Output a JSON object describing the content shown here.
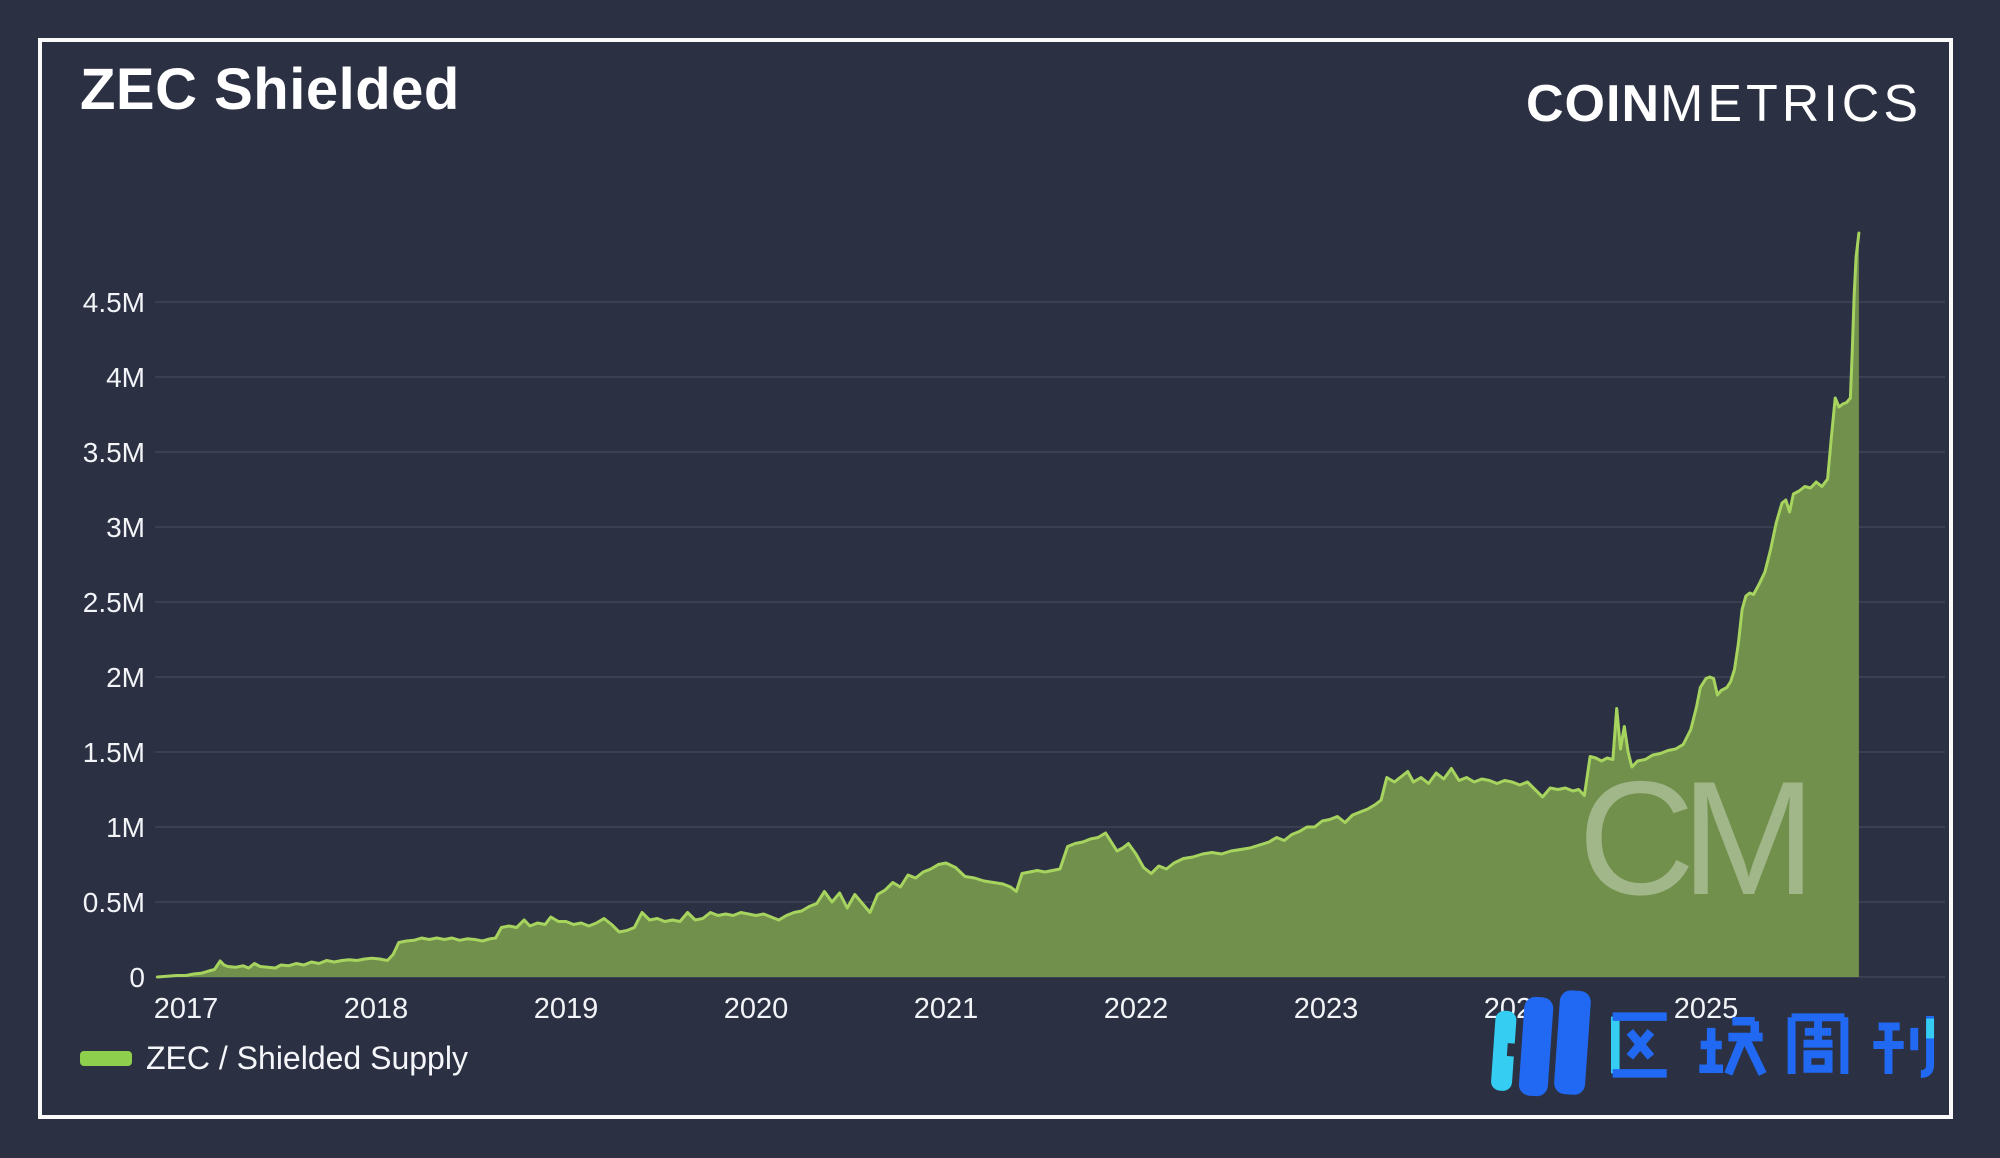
{
  "page": {
    "bg_color": "#2b3043",
    "frame_color": "#fafafa"
  },
  "header": {
    "title": "ZEC Shielded",
    "brand": {
      "bold": "COIN",
      "light": "METRICS"
    }
  },
  "legend": {
    "swatch_color": "#8ed04e",
    "label": "ZEC / Shielded Supply"
  },
  "watermarks": {
    "cm_monogram": "CM",
    "bottom_right_logo_text": "区块周刊",
    "logo_blue": "#2169f2",
    "logo_cyan": "#35cdf2"
  },
  "chart_data": {
    "type": "area",
    "title": "ZEC Shielded",
    "xlabel": "",
    "ylabel": "",
    "x_unit": "year",
    "y_unit": "ZEC (millions)",
    "grid": "horizontal-only",
    "legend_position": "bottom-left",
    "bg_color": "#2b3043",
    "grid_color": "rgba(255,255,255,0.10)",
    "xlim": [
      2016.837,
      2026.258
    ],
    "ylim": [
      0,
      5.247
    ],
    "x_ticks": [
      2017,
      2018,
      2019,
      2020,
      2021,
      2022,
      2023,
      2024,
      2025
    ],
    "y_ticks": [
      {
        "value": 0,
        "label": "0"
      },
      {
        "value": 0.5,
        "label": "0.5M"
      },
      {
        "value": 1,
        "label": "1M"
      },
      {
        "value": 1.5,
        "label": "1.5M"
      },
      {
        "value": 2,
        "label": "2M"
      },
      {
        "value": 2.5,
        "label": "2.5M"
      },
      {
        "value": 3,
        "label": "3M"
      },
      {
        "value": 3.5,
        "label": "3.5M"
      },
      {
        "value": 4,
        "label": "4M"
      },
      {
        "value": 4.5,
        "label": "4.5M"
      }
    ],
    "series": [
      {
        "name": "ZEC / Shielded Supply",
        "line_color": "#a7d45f",
        "fill_color": "#71904c",
        "points": [
          [
            2016.85,
            0.0
          ],
          [
            2016.9,
            0.005
          ],
          [
            2016.95,
            0.01
          ],
          [
            2017.0,
            0.01
          ],
          [
            2017.04,
            0.02
          ],
          [
            2017.08,
            0.025
          ],
          [
            2017.12,
            0.04
          ],
          [
            2017.15,
            0.05
          ],
          [
            2017.18,
            0.107
          ],
          [
            2017.2,
            0.08
          ],
          [
            2017.22,
            0.07
          ],
          [
            2017.26,
            0.065
          ],
          [
            2017.3,
            0.075
          ],
          [
            2017.33,
            0.06
          ],
          [
            2017.36,
            0.09
          ],
          [
            2017.39,
            0.07
          ],
          [
            2017.43,
            0.065
          ],
          [
            2017.47,
            0.06
          ],
          [
            2017.5,
            0.08
          ],
          [
            2017.54,
            0.075
          ],
          [
            2017.58,
            0.09
          ],
          [
            2017.62,
            0.08
          ],
          [
            2017.66,
            0.1
          ],
          [
            2017.7,
            0.09
          ],
          [
            2017.74,
            0.11
          ],
          [
            2017.78,
            0.1
          ],
          [
            2017.82,
            0.11
          ],
          [
            2017.86,
            0.115
          ],
          [
            2017.9,
            0.11
          ],
          [
            2017.94,
            0.12
          ],
          [
            2017.98,
            0.125
          ],
          [
            2018.02,
            0.12
          ],
          [
            2018.06,
            0.11
          ],
          [
            2018.09,
            0.15
          ],
          [
            2018.12,
            0.23
          ],
          [
            2018.16,
            0.24
          ],
          [
            2018.2,
            0.245
          ],
          [
            2018.24,
            0.26
          ],
          [
            2018.28,
            0.25
          ],
          [
            2018.32,
            0.26
          ],
          [
            2018.36,
            0.25
          ],
          [
            2018.4,
            0.26
          ],
          [
            2018.44,
            0.245
          ],
          [
            2018.48,
            0.255
          ],
          [
            2018.52,
            0.25
          ],
          [
            2018.56,
            0.24
          ],
          [
            2018.6,
            0.255
          ],
          [
            2018.63,
            0.26
          ],
          [
            2018.66,
            0.33
          ],
          [
            2018.7,
            0.34
          ],
          [
            2018.74,
            0.33
          ],
          [
            2018.78,
            0.38
          ],
          [
            2018.81,
            0.34
          ],
          [
            2018.85,
            0.36
          ],
          [
            2018.89,
            0.35
          ],
          [
            2018.92,
            0.4
          ],
          [
            2018.96,
            0.37
          ],
          [
            2019.0,
            0.37
          ],
          [
            2019.04,
            0.35
          ],
          [
            2019.08,
            0.36
          ],
          [
            2019.12,
            0.34
          ],
          [
            2019.16,
            0.36
          ],
          [
            2019.2,
            0.39
          ],
          [
            2019.24,
            0.35
          ],
          [
            2019.28,
            0.3
          ],
          [
            2019.32,
            0.31
          ],
          [
            2019.36,
            0.33
          ],
          [
            2019.4,
            0.43
          ],
          [
            2019.44,
            0.38
          ],
          [
            2019.48,
            0.39
          ],
          [
            2019.52,
            0.37
          ],
          [
            2019.56,
            0.38
          ],
          [
            2019.6,
            0.37
          ],
          [
            2019.64,
            0.43
          ],
          [
            2019.68,
            0.38
          ],
          [
            2019.72,
            0.39
          ],
          [
            2019.76,
            0.43
          ],
          [
            2019.8,
            0.41
          ],
          [
            2019.84,
            0.42
          ],
          [
            2019.88,
            0.41
          ],
          [
            2019.92,
            0.43
          ],
          [
            2019.96,
            0.42
          ],
          [
            2020.0,
            0.41
          ],
          [
            2020.04,
            0.42
          ],
          [
            2020.08,
            0.4
          ],
          [
            2020.12,
            0.38
          ],
          [
            2020.16,
            0.41
          ],
          [
            2020.2,
            0.43
          ],
          [
            2020.24,
            0.44
          ],
          [
            2020.28,
            0.47
          ],
          [
            2020.32,
            0.49
          ],
          [
            2020.36,
            0.57
          ],
          [
            2020.4,
            0.5
          ],
          [
            2020.44,
            0.56
          ],
          [
            2020.48,
            0.46
          ],
          [
            2020.52,
            0.55
          ],
          [
            2020.56,
            0.49
          ],
          [
            2020.6,
            0.43
          ],
          [
            2020.64,
            0.55
          ],
          [
            2020.68,
            0.58
          ],
          [
            2020.72,
            0.63
          ],
          [
            2020.76,
            0.6
          ],
          [
            2020.8,
            0.68
          ],
          [
            2020.84,
            0.66
          ],
          [
            2020.88,
            0.7
          ],
          [
            2020.92,
            0.72
          ],
          [
            2020.96,
            0.75
          ],
          [
            2021.0,
            0.76
          ],
          [
            2021.05,
            0.73
          ],
          [
            2021.1,
            0.67
          ],
          [
            2021.15,
            0.66
          ],
          [
            2021.2,
            0.64
          ],
          [
            2021.25,
            0.63
          ],
          [
            2021.3,
            0.62
          ],
          [
            2021.34,
            0.6
          ],
          [
            2021.37,
            0.57
          ],
          [
            2021.4,
            0.69
          ],
          [
            2021.44,
            0.7
          ],
          [
            2021.48,
            0.71
          ],
          [
            2021.52,
            0.7
          ],
          [
            2021.56,
            0.71
          ],
          [
            2021.6,
            0.72
          ],
          [
            2021.64,
            0.87
          ],
          [
            2021.68,
            0.89
          ],
          [
            2021.72,
            0.9
          ],
          [
            2021.76,
            0.92
          ],
          [
            2021.8,
            0.93
          ],
          [
            2021.84,
            0.96
          ],
          [
            2021.87,
            0.9
          ],
          [
            2021.9,
            0.84
          ],
          [
            2021.93,
            0.86
          ],
          [
            2021.96,
            0.89
          ],
          [
            2022.0,
            0.82
          ],
          [
            2022.04,
            0.73
          ],
          [
            2022.08,
            0.69
          ],
          [
            2022.12,
            0.74
          ],
          [
            2022.16,
            0.72
          ],
          [
            2022.2,
            0.76
          ],
          [
            2022.25,
            0.79
          ],
          [
            2022.3,
            0.8
          ],
          [
            2022.35,
            0.82
          ],
          [
            2022.4,
            0.83
          ],
          [
            2022.45,
            0.82
          ],
          [
            2022.5,
            0.84
          ],
          [
            2022.55,
            0.85
          ],
          [
            2022.6,
            0.86
          ],
          [
            2022.65,
            0.88
          ],
          [
            2022.7,
            0.9
          ],
          [
            2022.74,
            0.93
          ],
          [
            2022.78,
            0.91
          ],
          [
            2022.82,
            0.95
          ],
          [
            2022.86,
            0.97
          ],
          [
            2022.9,
            1.0
          ],
          [
            2022.94,
            1.0
          ],
          [
            2022.98,
            1.04
          ],
          [
            2023.02,
            1.05
          ],
          [
            2023.06,
            1.07
          ],
          [
            2023.1,
            1.03
          ],
          [
            2023.14,
            1.08
          ],
          [
            2023.18,
            1.1
          ],
          [
            2023.22,
            1.12
          ],
          [
            2023.26,
            1.15
          ],
          [
            2023.29,
            1.18
          ],
          [
            2023.32,
            1.33
          ],
          [
            2023.36,
            1.3
          ],
          [
            2023.4,
            1.34
          ],
          [
            2023.43,
            1.37
          ],
          [
            2023.46,
            1.3
          ],
          [
            2023.5,
            1.33
          ],
          [
            2023.54,
            1.29
          ],
          [
            2023.58,
            1.36
          ],
          [
            2023.62,
            1.32
          ],
          [
            2023.66,
            1.39
          ],
          [
            2023.7,
            1.31
          ],
          [
            2023.74,
            1.33
          ],
          [
            2023.78,
            1.3
          ],
          [
            2023.82,
            1.32
          ],
          [
            2023.86,
            1.31
          ],
          [
            2023.9,
            1.29
          ],
          [
            2023.94,
            1.31
          ],
          [
            2023.98,
            1.3
          ],
          [
            2024.02,
            1.28
          ],
          [
            2024.06,
            1.3
          ],
          [
            2024.1,
            1.25
          ],
          [
            2024.14,
            1.2
          ],
          [
            2024.18,
            1.26
          ],
          [
            2024.22,
            1.25
          ],
          [
            2024.26,
            1.26
          ],
          [
            2024.3,
            1.24
          ],
          [
            2024.33,
            1.25
          ],
          [
            2024.36,
            1.21
          ],
          [
            2024.39,
            1.47
          ],
          [
            2024.42,
            1.46
          ],
          [
            2024.45,
            1.44
          ],
          [
            2024.48,
            1.46
          ],
          [
            2024.51,
            1.45
          ],
          [
            2024.53,
            1.79
          ],
          [
            2024.55,
            1.52
          ],
          [
            2024.57,
            1.67
          ],
          [
            2024.59,
            1.5
          ],
          [
            2024.61,
            1.4
          ],
          [
            2024.64,
            1.44
          ],
          [
            2024.68,
            1.45
          ],
          [
            2024.72,
            1.48
          ],
          [
            2024.76,
            1.49
          ],
          [
            2024.8,
            1.51
          ],
          [
            2024.84,
            1.52
          ],
          [
            2024.88,
            1.55
          ],
          [
            2024.92,
            1.65
          ],
          [
            2024.95,
            1.8
          ],
          [
            2024.97,
            1.93
          ],
          [
            2025.0,
            1.99
          ],
          [
            2025.02,
            2.0
          ],
          [
            2025.04,
            1.99
          ],
          [
            2025.06,
            1.88
          ],
          [
            2025.08,
            1.91
          ],
          [
            2025.11,
            1.93
          ],
          [
            2025.13,
            1.97
          ],
          [
            2025.15,
            2.05
          ],
          [
            2025.17,
            2.22
          ],
          [
            2025.19,
            2.45
          ],
          [
            2025.21,
            2.54
          ],
          [
            2025.23,
            2.56
          ],
          [
            2025.25,
            2.55
          ],
          [
            2025.28,
            2.62
          ],
          [
            2025.31,
            2.7
          ],
          [
            2025.34,
            2.85
          ],
          [
            2025.37,
            3.03
          ],
          [
            2025.4,
            3.16
          ],
          [
            2025.42,
            3.18
          ],
          [
            2025.44,
            3.1
          ],
          [
            2025.46,
            3.22
          ],
          [
            2025.49,
            3.24
          ],
          [
            2025.52,
            3.27
          ],
          [
            2025.55,
            3.26
          ],
          [
            2025.58,
            3.3
          ],
          [
            2025.61,
            3.27
          ],
          [
            2025.64,
            3.32
          ],
          [
            2025.66,
            3.6
          ],
          [
            2025.68,
            3.86
          ],
          [
            2025.7,
            3.8
          ],
          [
            2025.72,
            3.82
          ],
          [
            2025.74,
            3.83
          ],
          [
            2025.76,
            3.86
          ],
          [
            2025.77,
            4.18
          ],
          [
            2025.78,
            4.55
          ],
          [
            2025.79,
            4.8
          ],
          [
            2025.805,
            4.96
          ]
        ]
      }
    ]
  }
}
